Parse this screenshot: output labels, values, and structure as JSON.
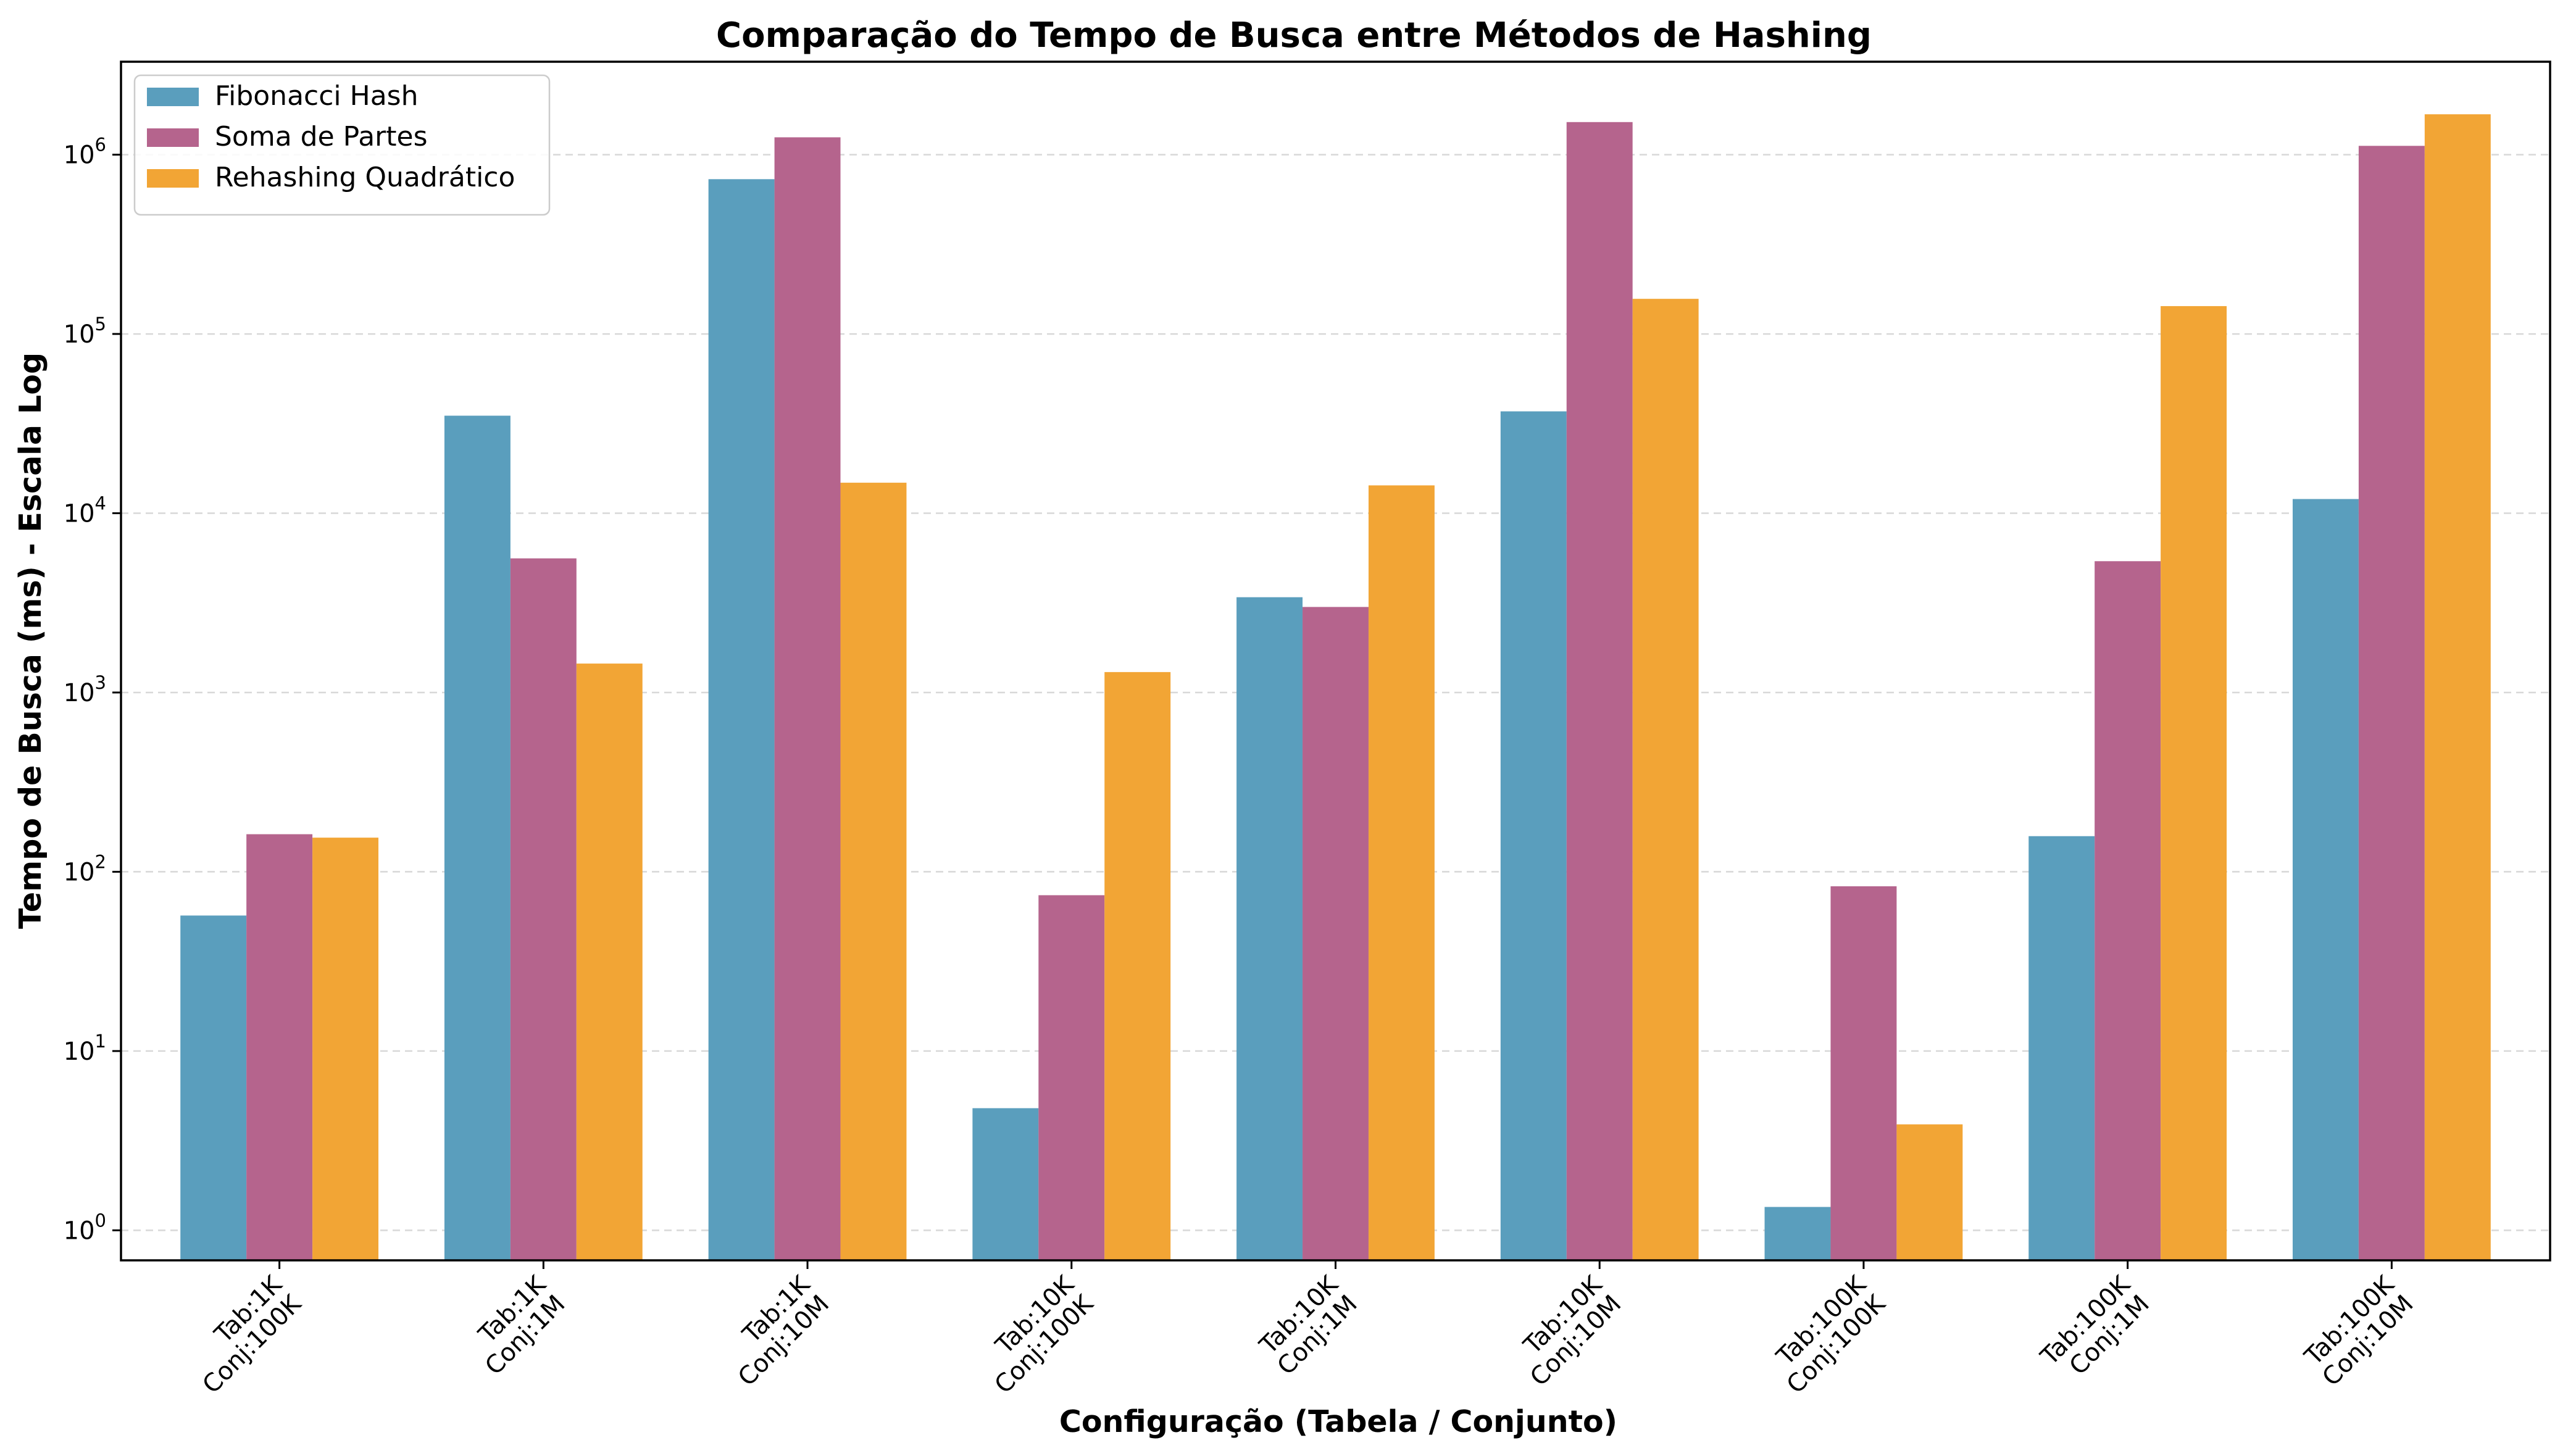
{
  "chart_data": {
    "type": "bar",
    "title": "Comparação do Tempo de Busca entre Métodos de Hashing",
    "xlabel": "Configuração (Tabela / Conjunto)",
    "ylabel": "Tempo de Busca (ms) - Escala Log",
    "yscale": "log",
    "ylim": [
      0.68,
      3300000
    ],
    "grid": "y",
    "legend_position": "top-left",
    "categories": [
      [
        "Tab:1K",
        "Conj:100K"
      ],
      [
        "Tab:1K",
        "Conj:1M"
      ],
      [
        "Tab:1K",
        "Conj:10M"
      ],
      [
        "Tab:10K",
        "Conj:100K"
      ],
      [
        "Tab:10K",
        "Conj:1M"
      ],
      [
        "Tab:10K",
        "Conj:10M"
      ],
      [
        "Tab:100K",
        "Conj:100K"
      ],
      [
        "Tab:100K",
        "Conj:1M"
      ],
      [
        "Tab:100K",
        "Conj:10M"
      ]
    ],
    "yticks": [
      1,
      10,
      100,
      1000,
      10000,
      100000,
      1000000
    ],
    "ytick_labels": [
      {
        "base": "10",
        "exp": "0"
      },
      {
        "base": "10",
        "exp": "1"
      },
      {
        "base": "10",
        "exp": "2"
      },
      {
        "base": "10",
        "exp": "3"
      },
      {
        "base": "10",
        "exp": "4"
      },
      {
        "base": "10",
        "exp": "5"
      },
      {
        "base": "10",
        "exp": "6"
      }
    ],
    "series": [
      {
        "name": "Fibonacci Hash",
        "color": "#5a9ebd",
        "values": [
          57,
          35000,
          730000,
          4.8,
          3400,
          37000,
          1.35,
          158,
          12000
        ]
      },
      {
        "name": "Soma de Partes",
        "color": "#b5648d",
        "values": [
          162,
          5600,
          1250000,
          74,
          3000,
          1520000,
          83,
          5400,
          1120000
        ]
      },
      {
        "name": "Rehashing Quadrático",
        "color": "#f2a535",
        "values": [
          155,
          1450,
          14800,
          1300,
          14300,
          157000,
          3.9,
          143000,
          1680000
        ]
      }
    ]
  }
}
